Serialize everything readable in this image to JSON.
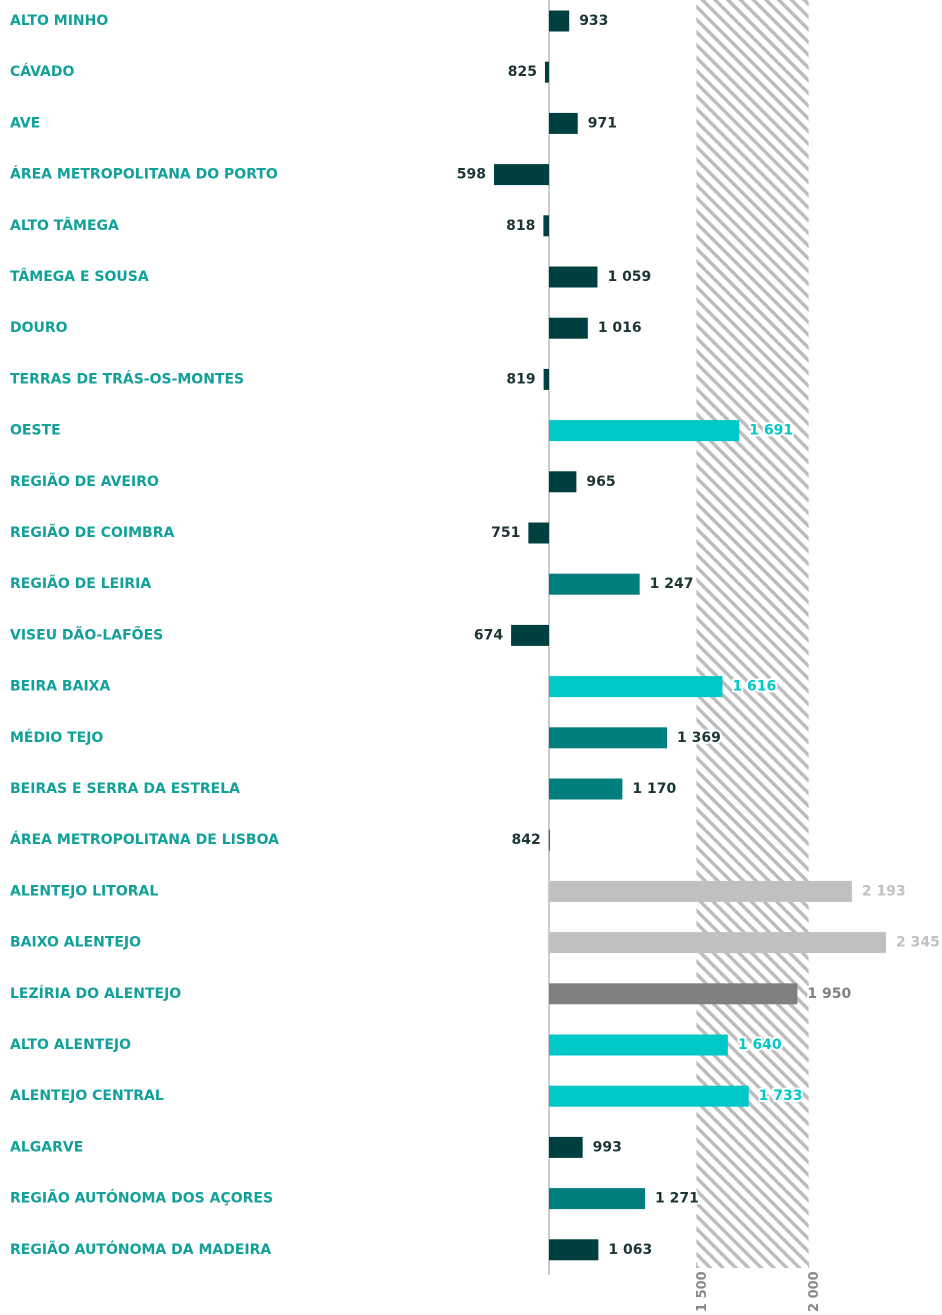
{
  "chart_data": {
    "type": "bar",
    "orientation": "horizontal",
    "categories": [
      "ALTO MINHO",
      "CÁVADO",
      "AVE",
      "ÁREA METROPOLITANA DO PORTO",
      "ALTO TÂMEGA",
      "TÂMEGA E SOUSA",
      "DOURO",
      "TERRAS DE TRÁS-OS-MONTES",
      "OESTE",
      "REGIÃO DE AVEIRO",
      "REGIÃO DE COIMBRA",
      "REGIÃO DE LEIRIA",
      "VISEU DÃO-LAFÕES",
      "BEIRA BAIXA",
      "MÉDIO TEJO",
      "BEIRAS E SERRA DA ESTRELA",
      "ÁREA METROPOLITANA DE LISBOA",
      "ALENTEJO LITORAL",
      "BAIXO ALENTEJO",
      "LEZÍRIA DO ALENTEJO",
      "ALTO ALENTEJO",
      "ALENTEJO CENTRAL",
      "ALGARVE",
      "REGIÃO AUTÓNOMA DOS AÇORES",
      "REGIÃO AUTÓNOMA DA MADEIRA"
    ],
    "values": [
      933,
      825,
      971,
      598,
      818,
      1059,
      1016,
      819,
      1691,
      965,
      751,
      1247,
      674,
      1616,
      1369,
      1170,
      842,
      2193,
      2345,
      1950,
      1640,
      1733,
      993,
      1271,
      1063
    ],
    "value_labels": [
      "933",
      "825",
      "971",
      "598",
      "818",
      "1 059",
      "1 016",
      "819",
      "1 691",
      "965",
      "751",
      "1 247",
      "674",
      "1 616",
      "1 369",
      "1 170",
      "842",
      "2 193",
      "2 345",
      "1 950",
      "1 640",
      "1 733",
      "993",
      "1 271",
      "1 063"
    ],
    "colors": [
      "#003f3f",
      "#003f3f",
      "#003f3f",
      "#003f3f",
      "#003f3f",
      "#003f3f",
      "#003f3f",
      "#003f3f",
      "#00c8c8",
      "#003f3f",
      "#003f3f",
      "#007d7d",
      "#003f3f",
      "#00c8c8",
      "#007d7d",
      "#007d7d",
      "#003f3f",
      "#c0c0c0",
      "#c0c0c0",
      "#808080",
      "#00c8c8",
      "#00c8c8",
      "#003f3f",
      "#007d7d",
      "#003f3f"
    ],
    "xlim": [
      843,
      2590
    ],
    "xticks": [
      {
        "value": 1500,
        "label": "1 500"
      },
      {
        "value": 2000,
        "label": "2 000"
      }
    ]
  }
}
